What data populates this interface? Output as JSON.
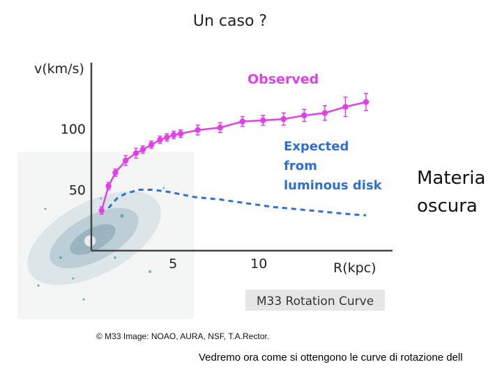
{
  "slide": {
    "title": "Un caso ?",
    "side_note_line1": "Materia",
    "side_note_line2": "oscura",
    "credit": "© M33 Image: NOAO, AURA, NSF, T.A.Rector.",
    "footer": "Vedremo ora come si ottengono le curve di rotazione dell"
  },
  "colors": {
    "observed": "#e040e8",
    "expected": "#2f6fd0",
    "axes": "#444444",
    "caption_bg": "#e6e6e6"
  },
  "chart_data": {
    "type": "line",
    "title": "M33 Rotation Curve",
    "xlabel": "R(kpc)",
    "ylabel": "v(km/s)",
    "xlim": [
      0,
      16
    ],
    "ylim": [
      0,
      140
    ],
    "xticks": [
      5,
      10
    ],
    "yticks": [
      50,
      100
    ],
    "grid": false,
    "series": [
      {
        "name": "Observed",
        "style": "solid-with-errorbars",
        "points": [
          {
            "x": 0.6,
            "y": 33,
            "err": 3
          },
          {
            "x": 1.0,
            "y": 53,
            "err": 3
          },
          {
            "x": 1.4,
            "y": 64,
            "err": 3
          },
          {
            "x": 2.0,
            "y": 74,
            "err": 4
          },
          {
            "x": 2.6,
            "y": 80,
            "err": 4
          },
          {
            "x": 3.0,
            "y": 83,
            "err": 3
          },
          {
            "x": 3.5,
            "y": 87,
            "err": 3
          },
          {
            "x": 4.0,
            "y": 91,
            "err": 3
          },
          {
            "x": 4.4,
            "y": 93,
            "err": 3
          },
          {
            "x": 4.8,
            "y": 95,
            "err": 3
          },
          {
            "x": 5.2,
            "y": 96,
            "err": 3
          },
          {
            "x": 6.2,
            "y": 99,
            "err": 4
          },
          {
            "x": 7.5,
            "y": 101,
            "err": 4
          },
          {
            "x": 8.8,
            "y": 106,
            "err": 4
          },
          {
            "x": 10.0,
            "y": 107,
            "err": 4
          },
          {
            "x": 11.2,
            "y": 108,
            "err": 5
          },
          {
            "x": 12.4,
            "y": 111,
            "err": 5
          },
          {
            "x": 13.6,
            "y": 113,
            "err": 6
          },
          {
            "x": 14.8,
            "y": 118,
            "err": 8
          },
          {
            "x": 16.0,
            "y": 122,
            "err": 7
          }
        ]
      },
      {
        "name": "Expected from luminous disk",
        "style": "dashed",
        "points": [
          {
            "x": 1.0,
            "y": 35
          },
          {
            "x": 1.5,
            "y": 43
          },
          {
            "x": 2.0,
            "y": 47
          },
          {
            "x": 2.8,
            "y": 50
          },
          {
            "x": 3.6,
            "y": 50
          },
          {
            "x": 4.6,
            "y": 48
          },
          {
            "x": 6.0,
            "y": 44
          },
          {
            "x": 7.5,
            "y": 42
          },
          {
            "x": 9.0,
            "y": 39
          },
          {
            "x": 10.5,
            "y": 36
          },
          {
            "x": 12.0,
            "y": 34
          },
          {
            "x": 13.5,
            "y": 32
          },
          {
            "x": 15.0,
            "y": 30
          },
          {
            "x": 16.0,
            "y": 29
          }
        ]
      }
    ],
    "annotations": {
      "observed_label": "Observed",
      "expected_line1": "Expected",
      "expected_line2": "from",
      "expected_line3": "luminous disk"
    }
  }
}
